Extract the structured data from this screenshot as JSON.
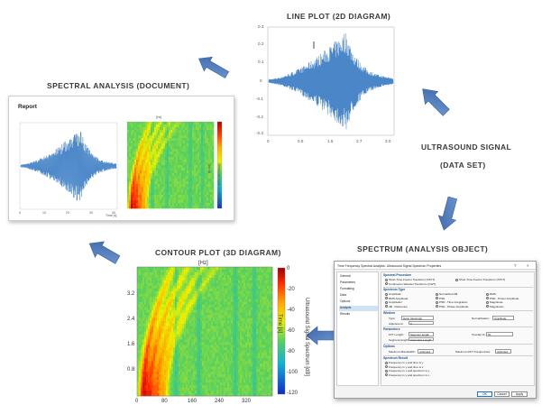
{
  "captions": {
    "line_plot": "LINE PLOT (2D DIAGRAM)",
    "spectral_analysis": "SPECTRAL ANALYSIS (DOCUMENT)",
    "ultrasound_line1": "ULTRASOUND SIGNAL",
    "ultrasound_line2": "(DATA SET)",
    "spectrum": "SPECTRUM (ANALYSIS OBJECT)",
    "contour_plot": "CONTOUR PLOT (3D DIAGRAM)"
  },
  "line_plot": {
    "y_ticks": [
      "0.3",
      "0.2",
      "0.1",
      "0",
      "-0.1",
      "-0.2",
      "-0.3"
    ],
    "x_ticks": [
      "0",
      "0.5",
      "1.5",
      "2.7",
      "3.0"
    ]
  },
  "report": {
    "title": "Report",
    "line_x_ticks": [
      "0",
      "10",
      "20",
      "30",
      "40"
    ],
    "line_x_label": "Time [s]",
    "contour_title": "[Hz]",
    "contour_colorbar_label": "Ultrasound Signal Spectrum [dB]",
    "contour_time_label": "Time [s]"
  },
  "contour": {
    "title": "[Hz]",
    "y_ticks": [
      "3.2",
      "2.4",
      "1.6",
      "0.8"
    ],
    "x_ticks": [
      "0",
      "80",
      "160",
      "240",
      "320"
    ],
    "colorbar_ticks": [
      "0",
      "-20",
      "-40",
      "-60",
      "-80",
      "-100",
      "-120"
    ],
    "time_label": "Time [s]",
    "colorbar_label": "Ultrasound Signal Spectrum [dB]"
  },
  "dialog": {
    "title": "Time Frequency Spectral Analysis: Ultrasound Signal Spectrum Properties",
    "help": "?",
    "close": "×",
    "nav": [
      "General",
      "Parameters",
      "Formatting",
      "Data",
      "Options",
      "Analysis",
      "Results"
    ],
    "nav_selected_index": 5,
    "groups": {
      "procedure": "Spectral Procedure",
      "spectrum_type": "Spectrum Type",
      "window": "Window",
      "parameters": "Parameters",
      "options": "Options",
      "spectrum_result": "Spectrum Result"
    },
    "procedure_options": [
      "Short-Time Fourier Transform (STFT)",
      "Continuous Wavelet Transform (CWT)",
      "Short-Time Fourier Transform (STFT)"
    ],
    "spectrum_type_col1": [
      "Amplitude",
      "RMS Amplitude",
      "Amplitude²",
      "dB - Reference"
    ],
    "spectrum_type_col2": [
      "Normalized dB",
      "PSD",
      "PSD - Time Integration",
      "PSD - Phase Amplitude"
    ],
    "spectrum_type_col3": [
      "RMS",
      "PSD - Power Amplitude",
      "Magnitude",
      "Magnitude²"
    ],
    "window_type_label": "Type:",
    "window_type_value": "Hann (Hanning)",
    "window_adjust_label": "Adjustment:",
    "window_adjust_value": "0",
    "normalization_label": "Normalization:",
    "normalization_value": "Amplitude",
    "fft_length_label": "FFT Length:",
    "fft_length_value": "Segment length",
    "segment_length_label": "Segment length:",
    "segment_length_value": "Automatic Length",
    "overlap_label": "Overlap %:",
    "overlap_value": "50",
    "max_bw_label": "Maximum Bandwidth:",
    "max_bw_value": "unlimited",
    "max_dft_label": "Maximum DFT Frequencies:",
    "max_dft_value": "unlimited",
    "result_options": [
      "Frequency is x and time is y",
      "Frequency is y and time is x",
      "Frequency is x and spectrum is y",
      "Frequency is y and spectrum is x"
    ],
    "ok": "OK",
    "cancel": "Cancel",
    "apply": "Apply"
  },
  "colors": {
    "arrow": "#4a76b8",
    "signal": "#4a86c8"
  }
}
